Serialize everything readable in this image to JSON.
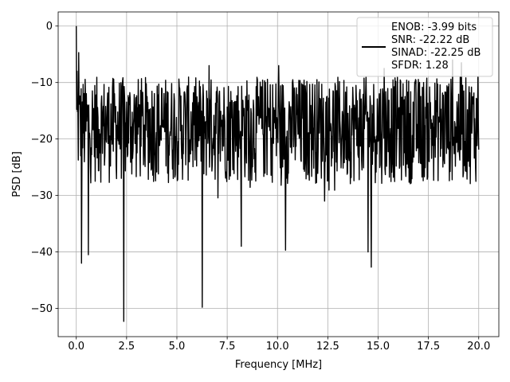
{
  "chart_data": {
    "type": "line",
    "title": "",
    "xlabel": "Frequency [MHz]",
    "ylabel": "PSD [dB]",
    "xlim": [
      -0.9,
      21.0
    ],
    "ylim": [
      -55.0,
      2.5
    ],
    "xticks": [
      0.0,
      2.5,
      5.0,
      7.5,
      10.0,
      12.5,
      15.0,
      17.5,
      20.0
    ],
    "xtick_labels": [
      "0.0",
      "2.5",
      "5.0",
      "7.5",
      "10.0",
      "12.5",
      "15.0",
      "17.5",
      "20.0"
    ],
    "yticks": [
      0,
      -10,
      -20,
      -30,
      -40,
      -50
    ],
    "ytick_labels": [
      "0",
      "−10",
      "−20",
      "−30",
      "−40",
      "−50"
    ],
    "grid": true,
    "legend": {
      "placement": "top-right",
      "entries": [
        "ENOB: -3.99 bits",
        "SNR: -22.22 dB",
        "SINAD: -22.25 dB",
        "SFDR: 1.28"
      ]
    },
    "series": [
      {
        "color": "#000000",
        "x_start": 0.0,
        "x_end": 20.0,
        "x_step": 0.02,
        "typical_range": [
          -28.0,
          -9.0
        ],
        "peaks": [
          {
            "x": 0.0,
            "y": 0.0
          },
          {
            "x": 0.04,
            "y": -8.0
          },
          {
            "x": 0.12,
            "y": -4.7
          },
          {
            "x": 6.6,
            "y": -7.0
          },
          {
            "x": 10.05,
            "y": -7.0
          },
          {
            "x": 15.3,
            "y": -7.5
          },
          {
            "x": 18.7,
            "y": -6.0
          },
          {
            "x": 19.15,
            "y": -6.5
          },
          {
            "x": 19.95,
            "y": -9.0
          }
        ],
        "dips": [
          {
            "x": 0.25,
            "y": -42.0
          },
          {
            "x": 0.6,
            "y": -40.5
          },
          {
            "x": 2.35,
            "y": -52.3
          },
          {
            "x": 6.25,
            "y": -49.8
          },
          {
            "x": 8.2,
            "y": -39.0
          },
          {
            "x": 10.4,
            "y": -39.7
          },
          {
            "x": 14.5,
            "y": -40.0
          },
          {
            "x": 14.65,
            "y": -42.7
          }
        ]
      }
    ]
  }
}
